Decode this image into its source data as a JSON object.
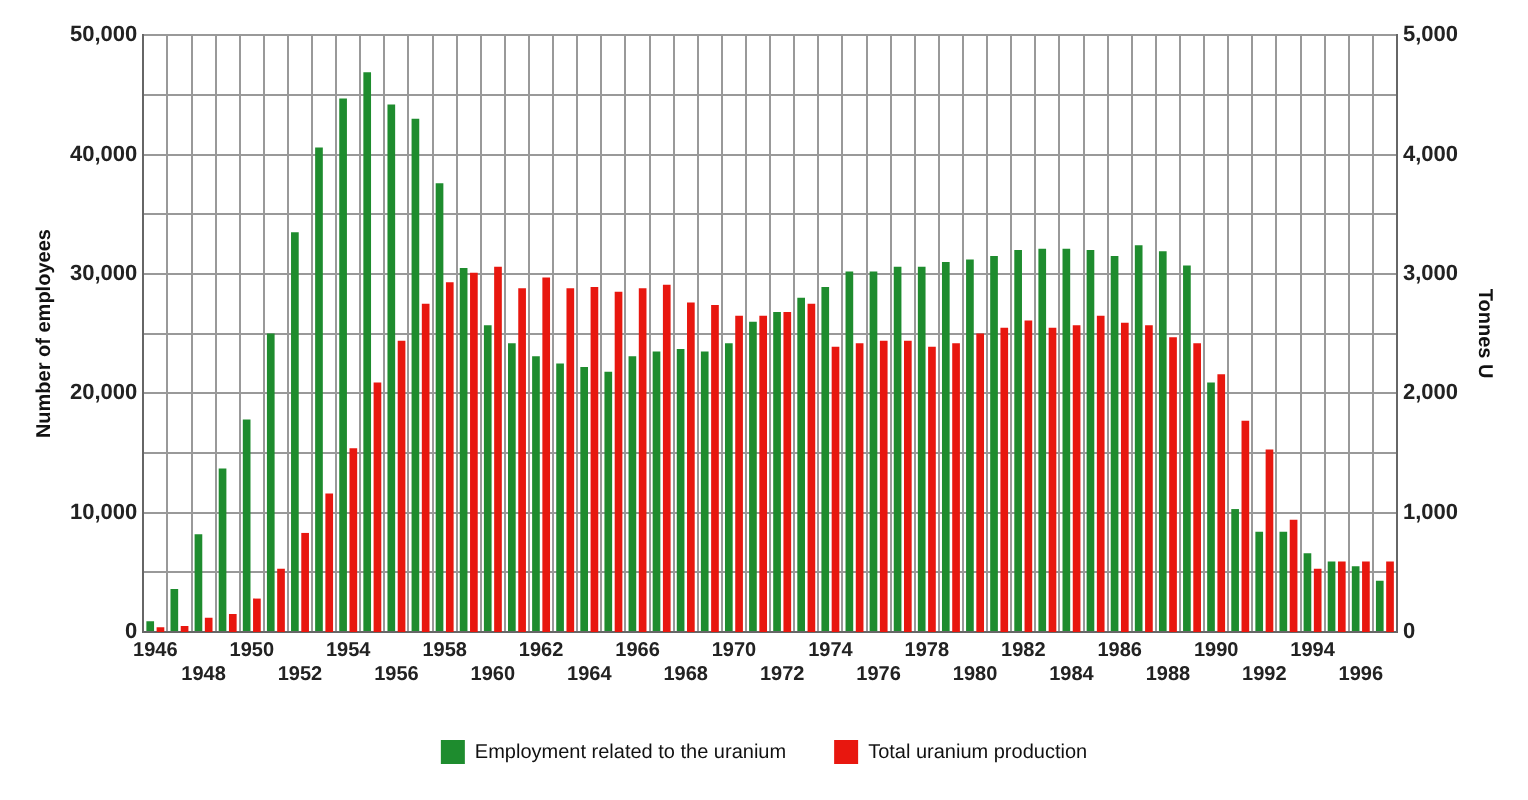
{
  "chart_data": {
    "type": "bar",
    "ylabel": "Number of employees",
    "y2label": "Tonnes U",
    "categories": [
      "1946",
      null,
      "1948",
      null,
      "1950",
      null,
      "1952",
      null,
      "1954",
      null,
      "1956",
      null,
      "1958",
      null,
      "1960",
      null,
      "1962",
      null,
      "1964",
      null,
      "1966",
      null,
      "1968",
      null,
      "1970",
      null,
      "1972",
      null,
      "1974",
      null,
      "1976",
      null,
      "1978",
      null,
      "1980",
      null,
      "1982",
      null,
      "1984",
      null,
      "1986",
      null,
      "1988",
      null,
      "1990",
      null,
      "1992",
      null,
      "1994",
      null,
      "1996",
      null
    ],
    "series": [
      {
        "name": "Employment related to the uranium",
        "color": "#1e8c2e",
        "values": [
          900,
          3600,
          8200,
          13700,
          17800,
          25000,
          33500,
          40600,
          44700,
          46900,
          44200,
          43000,
          37600,
          30500,
          25700,
          24200,
          23100,
          22500,
          22200,
          21800,
          23100,
          23500,
          23700,
          23500,
          24200,
          26000,
          26800,
          28000,
          28900,
          30200,
          30200,
          30600,
          30600,
          31000,
          31200,
          31500,
          32000,
          32100,
          32100,
          32000,
          31500,
          32400,
          31900,
          30700,
          20900,
          10300,
          8400,
          8400,
          6600,
          5900,
          5500,
          4300
        ]
      },
      {
        "name": "Total uranium production",
        "color": "#e8170f",
        "axis": "y2",
        "values": [
          40,
          50,
          120,
          150,
          280,
          530,
          830,
          1160,
          1540,
          2090,
          2440,
          2750,
          2930,
          3010,
          3060,
          2880,
          2970,
          2880,
          2890,
          2850,
          2880,
          2910,
          2760,
          2740,
          2650,
          2650,
          2680,
          2750,
          2390,
          2420,
          2440,
          2440,
          2390,
          2420,
          2500,
          2550,
          2610,
          2550,
          2570,
          2650,
          2590,
          2570,
          2470,
          2420,
          2160,
          1770,
          1530,
          940,
          530,
          590,
          590,
          590
        ]
      }
    ],
    "ylim": [
      0,
      50000
    ],
    "yticks": [
      0,
      {
        "value": 5000,
        "label": null
      },
      {
        "value": 10000,
        "label": "10,000"
      },
      {
        "value": 15000,
        "label": null
      },
      {
        "value": 20000,
        "label": "20,000"
      },
      {
        "value": 25000,
        "label": null
      },
      {
        "value": 30000,
        "label": "30,000"
      },
      {
        "value": 35000,
        "label": null
      },
      {
        "value": 40000,
        "label": "40,000"
      },
      {
        "value": 45000,
        "label": null
      },
      {
        "value": 50000,
        "label": "50,000"
      }
    ],
    "y2lim": [
      0,
      5000
    ],
    "y2ticks": [
      0,
      {
        "value": 1000,
        "label": "1,000"
      },
      {
        "value": 2000,
        "label": "2,000"
      },
      {
        "value": 3000,
        "label": "3,000"
      },
      {
        "value": 4000,
        "label": "4,000"
      },
      {
        "value": 5000,
        "label": "5,000"
      }
    ],
    "grid": true,
    "legend": "bottom"
  }
}
